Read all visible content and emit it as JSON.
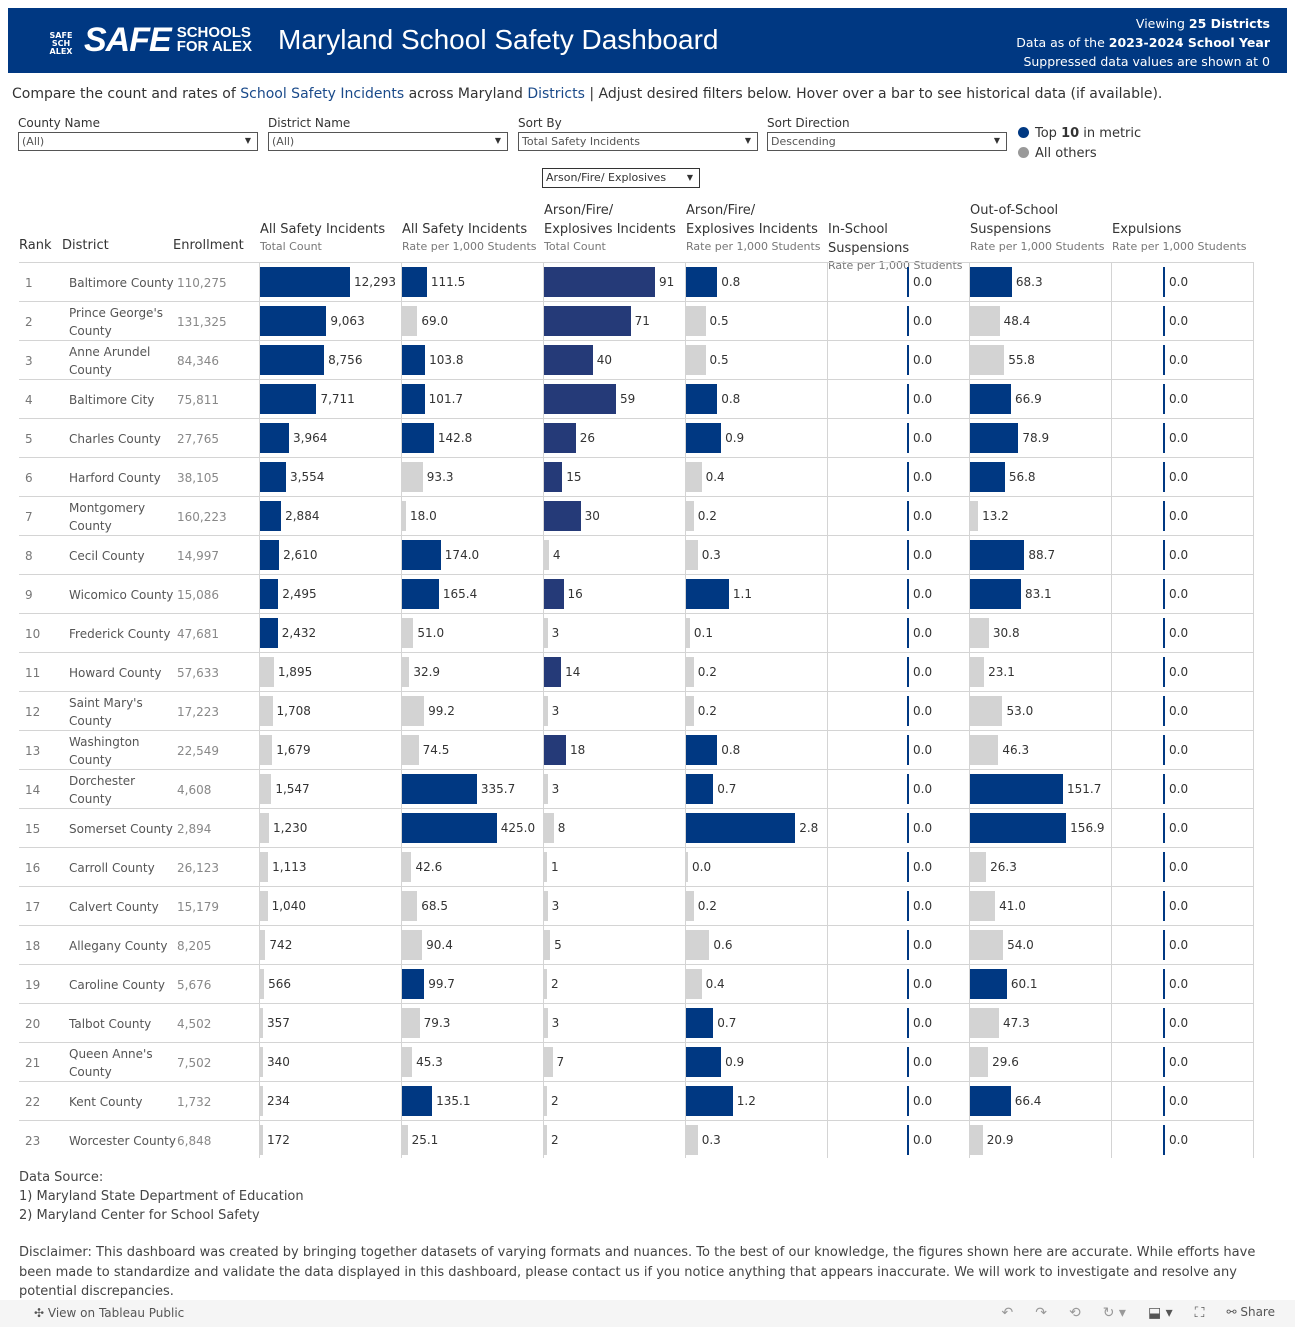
{
  "header": {
    "logo_text": "SAFE SCHOOLS FOR ALEX",
    "title": "Maryland School Safety Dashboard",
    "viewing_prefix": "Viewing ",
    "viewing_bold": "25 Districts",
    "data_prefix": "Data as of the ",
    "data_bold": "2023-2024 School Year",
    "suppressed": "Suppressed data values are shown at 0"
  },
  "intro": {
    "p1": "Compare the count and rates of ",
    "l1": "School Safety Incidents",
    "p2": " across Maryland ",
    "l2": "Districts",
    "p3": " | Adjust desired filters below. Hover over a bar to see historical data (if available)."
  },
  "filters": [
    {
      "label": "County Name",
      "value": "(All)"
    },
    {
      "label": "District Name",
      "value": "(All)"
    },
    {
      "label": "Sort By",
      "value": "Total Safety Incidents"
    },
    {
      "label": "Sort Direction",
      "value": "Descending"
    }
  ],
  "legend": {
    "top_prefix": "Top ",
    "top_bold": "10",
    "top_suffix": " in metric",
    "others": "All others"
  },
  "metric_select": "Arson/Fire/ Explosives",
  "colors": {
    "top": "#003882",
    "arson_top": "#253a78",
    "other": "#d3d3d3"
  },
  "columns": {
    "rank": "Rank",
    "district": "District",
    "enrollment": "Enrollment",
    "metrics": [
      {
        "title": "All Safety Incidents",
        "sub": "Total Count"
      },
      {
        "title": "All Safety Incidents",
        "sub": "Rate per 1,000 Students"
      },
      {
        "title": "Arson/Fire/ Explosives Incidents",
        "sub": "Total Count"
      },
      {
        "title": "Arson/Fire/ Explosives Incidents",
        "sub": "Rate per 1,000 Students"
      },
      {
        "title": "In-School Suspensions",
        "sub": "Rate per 1,000 Students"
      },
      {
        "title": "Out-of-School Suspensions",
        "sub": "Rate per 1,000 Students"
      },
      {
        "title": "Expulsions",
        "sub": "Rate per 1,000 Students"
      }
    ]
  },
  "rows": [
    [
      "1",
      "Baltimore County",
      "110,275",
      "12,293",
      "111.5",
      "91",
      "0.8",
      "0.0",
      "68.3",
      "0.0"
    ],
    [
      "2",
      "Prince George's County",
      "131,325",
      "9,063",
      "69.0",
      "71",
      "0.5",
      "0.0",
      "48.4",
      "0.0"
    ],
    [
      "3",
      "Anne Arundel County",
      "84,346",
      "8,756",
      "103.8",
      "40",
      "0.5",
      "0.0",
      "55.8",
      "0.0"
    ],
    [
      "4",
      "Baltimore City",
      "75,811",
      "7,711",
      "101.7",
      "59",
      "0.8",
      "0.0",
      "66.9",
      "0.0"
    ],
    [
      "5",
      "Charles County",
      "27,765",
      "3,964",
      "142.8",
      "26",
      "0.9",
      "0.0",
      "78.9",
      "0.0"
    ],
    [
      "6",
      "Harford County",
      "38,105",
      "3,554",
      "93.3",
      "15",
      "0.4",
      "0.0",
      "56.8",
      "0.0"
    ],
    [
      "7",
      "Montgomery County",
      "160,223",
      "2,884",
      "18.0",
      "30",
      "0.2",
      "0.0",
      "13.2",
      "0.0"
    ],
    [
      "8",
      "Cecil County",
      "14,997",
      "2,610",
      "174.0",
      "4",
      "0.3",
      "0.0",
      "88.7",
      "0.0"
    ],
    [
      "9",
      "Wicomico County",
      "15,086",
      "2,495",
      "165.4",
      "16",
      "1.1",
      "0.0",
      "83.1",
      "0.0"
    ],
    [
      "10",
      "Frederick County",
      "47,681",
      "2,432",
      "51.0",
      "3",
      "0.1",
      "0.0",
      "30.8",
      "0.0"
    ],
    [
      "11",
      "Howard County",
      "57,633",
      "1,895",
      "32.9",
      "14",
      "0.2",
      "0.0",
      "23.1",
      "0.0"
    ],
    [
      "12",
      "Saint Mary's County",
      "17,223",
      "1,708",
      "99.2",
      "3",
      "0.2",
      "0.0",
      "53.0",
      "0.0"
    ],
    [
      "13",
      "Washington County",
      "22,549",
      "1,679",
      "74.5",
      "18",
      "0.8",
      "0.0",
      "46.3",
      "0.0"
    ],
    [
      "14",
      "Dorchester County",
      "4,608",
      "1,547",
      "335.7",
      "3",
      "0.7",
      "0.0",
      "151.7",
      "0.0"
    ],
    [
      "15",
      "Somerset County",
      "2,894",
      "1,230",
      "425.0",
      "8",
      "2.8",
      "0.0",
      "156.9",
      "0.0"
    ],
    [
      "16",
      "Carroll County",
      "26,123",
      "1,113",
      "42.6",
      "1",
      "0.0",
      "0.0",
      "26.3",
      "0.0"
    ],
    [
      "17",
      "Calvert County",
      "15,179",
      "1,040",
      "68.5",
      "3",
      "0.2",
      "0.0",
      "41.0",
      "0.0"
    ],
    [
      "18",
      "Allegany County",
      "8,205",
      "742",
      "90.4",
      "5",
      "0.6",
      "0.0",
      "54.0",
      "0.0"
    ],
    [
      "19",
      "Caroline County",
      "5,676",
      "566",
      "99.7",
      "2",
      "0.4",
      "0.0",
      "60.1",
      "0.0"
    ],
    [
      "20",
      "Talbot County",
      "4,502",
      "357",
      "79.3",
      "3",
      "0.7",
      "0.0",
      "47.3",
      "0.0"
    ],
    [
      "21",
      "Queen Anne's County",
      "7,502",
      "340",
      "45.3",
      "7",
      "0.9",
      "0.0",
      "29.6",
      "0.0"
    ],
    [
      "22",
      "Kent County",
      "1,732",
      "234",
      "135.1",
      "2",
      "1.2",
      "0.0",
      "66.4",
      "0.0"
    ],
    [
      "23",
      "Worcester County",
      "6,848",
      "172",
      "25.1",
      "2",
      "0.3",
      "0.0",
      "20.9",
      "0.0"
    ]
  ],
  "sources": {
    "title": "Data Source:",
    "items": [
      "1) Maryland State Department of Education",
      "2) Maryland Center for School Safety"
    ]
  },
  "disclaimer": "Disclaimer: This dashboard was created by bringing together datasets of varying formats and nuances. To the best of our knowledge, the figures shown here are accurate. While efforts have been made to standardize and validate the data displayed in this dashboard, please contact us if you notice anything that appears inaccurate. We will work to investigate and resolve any potential discrepancies.",
  "toolbar": {
    "view": "View on Tableau Public",
    "share": "Share"
  }
}
